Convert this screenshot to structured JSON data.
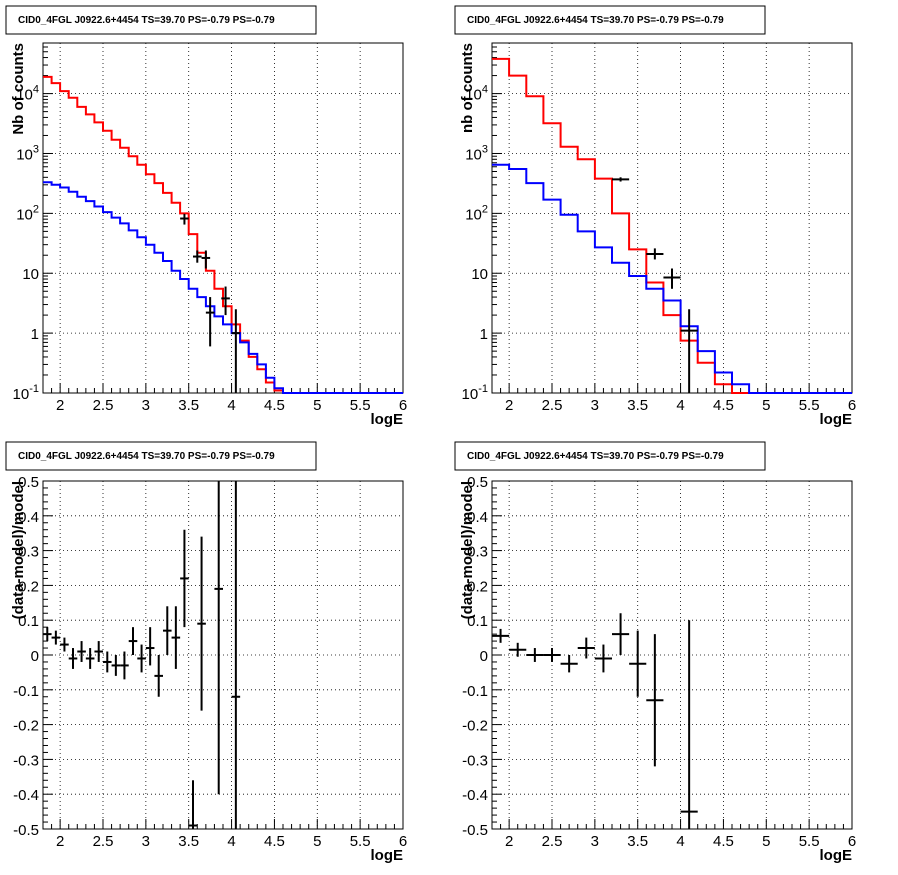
{
  "chart_data": [
    {
      "type": "line",
      "title": "CID0_4FGL J0922.6+4454 TS=39.70 PS=-0.79 PS=-0.79",
      "xlabel": "logE",
      "ylabel": "Nb of counts",
      "xlim": [
        1.8,
        6.0
      ],
      "ylim": [
        0.1,
        70000
      ],
      "ylog": true,
      "grid": true,
      "x_ticks": [
        "2",
        "2.5",
        "3",
        "3.5",
        "4",
        "4.5",
        "5",
        "5.5",
        "6"
      ],
      "y_ticks": [
        "10^-1",
        "1",
        "10",
        "10^2",
        "10^3",
        "10^4"
      ],
      "bin_edges": [
        1.8,
        1.9,
        2.0,
        2.1,
        2.2,
        2.3,
        2.4,
        2.5,
        2.6,
        2.7,
        2.8,
        2.9,
        3.0,
        3.1,
        3.2,
        3.3,
        3.4,
        3.5,
        3.6,
        3.7,
        3.8,
        3.9,
        4.0,
        4.1,
        4.2,
        4.3,
        4.4,
        4.5,
        4.6,
        6.0
      ],
      "series": [
        {
          "kind": "step",
          "color": "#ff0000",
          "values": [
            19000,
            15000,
            11000,
            8500,
            6000,
            4500,
            3300,
            2400,
            1700,
            1250,
            900,
            650,
            450,
            320,
            220,
            150,
            100,
            45,
            22,
            11,
            5.5,
            2.8,
            1.4,
            0.75,
            0.4,
            0.25,
            0.15,
            0.11,
            0.1
          ]
        },
        {
          "kind": "step",
          "color": "#0000ff",
          "values": [
            330,
            300,
            270,
            230,
            190,
            160,
            130,
            105,
            85,
            68,
            52,
            40,
            30,
            22,
            16,
            11,
            8,
            5.5,
            4,
            2.8,
            1.9,
            1.4,
            1.0,
            0.7,
            0.45,
            0.3,
            0.18,
            0.12,
            0.1
          ]
        },
        {
          "kind": "points",
          "color": "#000000",
          "points": [
            {
              "x": 3.45,
              "y": 82,
              "ylo": 65,
              "yhi": 98,
              "xerr": 0.05
            },
            {
              "x": 3.6,
              "y": 19,
              "ylo": 15,
              "yhi": 24,
              "xerr": 0.05
            },
            {
              "x": 3.7,
              "y": 18,
              "ylo": 12,
              "yhi": 24,
              "xerr": 0.05
            },
            {
              "x": 3.75,
              "y": 2.2,
              "ylo": 0.6,
              "yhi": 4.0,
              "xerr": 0.05
            },
            {
              "x": 3.93,
              "y": 3.8,
              "ylo": 2.0,
              "yhi": 6.0,
              "xerr": 0.05
            },
            {
              "x": 4.05,
              "y": 1.0,
              "ylo": 0.1,
              "yhi": 2.5,
              "xerr": 0.05
            }
          ]
        }
      ]
    },
    {
      "type": "line",
      "title": "CID0_4FGL J0922.6+4454 TS=39.70 PS=-0.79 PS=-0.79",
      "xlabel": "logE",
      "ylabel": "nb of counts",
      "xlim": [
        1.8,
        6.0
      ],
      "ylim": [
        0.1,
        70000
      ],
      "ylog": true,
      "grid": true,
      "x_ticks": [
        "2",
        "2.5",
        "3",
        "3.5",
        "4",
        "4.5",
        "5",
        "5.5",
        "6"
      ],
      "y_ticks": [
        "10^-1",
        "1",
        "10",
        "10^2",
        "10^3",
        "10^4"
      ],
      "bin_edges": [
        1.8,
        2.0,
        2.2,
        2.4,
        2.6,
        2.8,
        3.0,
        3.2,
        3.4,
        3.6,
        3.8,
        4.0,
        4.2,
        4.4,
        4.6,
        4.8,
        6.0
      ],
      "series": [
        {
          "kind": "step",
          "color": "#ff0000",
          "values": [
            38000,
            20000,
            9000,
            3200,
            1300,
            800,
            380,
            100,
            25,
            7,
            2,
            0.75,
            0.32,
            0.14,
            0.1,
            0.1
          ]
        },
        {
          "kind": "step",
          "color": "#0000ff",
          "values": [
            650,
            550,
            320,
            170,
            95,
            50,
            27,
            15,
            9,
            5.5,
            3.5,
            1.3,
            0.5,
            0.22,
            0.14,
            0.1
          ]
        },
        {
          "kind": "points",
          "color": "#000000",
          "points": [
            {
              "x": 3.3,
              "y": 370,
              "ylo": 340,
              "yhi": 400,
              "xerr": 0.1
            },
            {
              "x": 3.7,
              "y": 21,
              "ylo": 17,
              "yhi": 26,
              "xerr": 0.1
            },
            {
              "x": 3.9,
              "y": 8.5,
              "ylo": 5.5,
              "yhi": 12,
              "xerr": 0.1
            },
            {
              "x": 4.1,
              "y": 1.1,
              "ylo": 0.1,
              "yhi": 2.5,
              "xerr": 0.1
            }
          ]
        }
      ]
    },
    {
      "type": "scatter",
      "title": "CID0_4FGL J0922.6+4454 TS=39.70 PS=-0.79 PS=-0.79",
      "xlabel": "logE",
      "ylabel": "(data-model)/model",
      "xlim": [
        1.8,
        6.0
      ],
      "ylim": [
        -0.5,
        0.5
      ],
      "ylog": false,
      "grid": true,
      "x_ticks": [
        "2",
        "2.5",
        "3",
        "3.5",
        "4",
        "4.5",
        "5",
        "5.5",
        "6"
      ],
      "y_ticks": [
        "-0.5",
        "-0.4",
        "-0.3",
        "-0.2",
        "-0.1",
        "0",
        "0.1",
        "0.2",
        "0.3",
        "0.4",
        "0.5"
      ],
      "series": [
        {
          "kind": "points",
          "color": "#000000",
          "points": [
            {
              "x": 1.85,
              "y": 0.06,
              "ylo": 0.04,
              "yhi": 0.08,
              "xerr": 0.05
            },
            {
              "x": 1.95,
              "y": 0.05,
              "ylo": 0.03,
              "yhi": 0.07,
              "xerr": 0.05
            },
            {
              "x": 2.05,
              "y": 0.03,
              "ylo": 0.01,
              "yhi": 0.05,
              "xerr": 0.05
            },
            {
              "x": 2.15,
              "y": -0.01,
              "ylo": -0.04,
              "yhi": 0.02,
              "xerr": 0.05
            },
            {
              "x": 2.25,
              "y": 0.01,
              "ylo": -0.02,
              "yhi": 0.04,
              "xerr": 0.05
            },
            {
              "x": 2.35,
              "y": -0.01,
              "ylo": -0.04,
              "yhi": 0.02,
              "xerr": 0.05
            },
            {
              "x": 2.45,
              "y": 0.01,
              "ylo": -0.02,
              "yhi": 0.04,
              "xerr": 0.05
            },
            {
              "x": 2.55,
              "y": -0.02,
              "ylo": -0.05,
              "yhi": 0.01,
              "xerr": 0.05
            },
            {
              "x": 2.65,
              "y": -0.03,
              "ylo": -0.06,
              "yhi": 0.0,
              "xerr": 0.05
            },
            {
              "x": 2.75,
              "y": -0.03,
              "ylo": -0.07,
              "yhi": 0.01,
              "xerr": 0.05
            },
            {
              "x": 2.85,
              "y": 0.04,
              "ylo": 0.0,
              "yhi": 0.08,
              "xerr": 0.05
            },
            {
              "x": 2.95,
              "y": -0.01,
              "ylo": -0.05,
              "yhi": 0.03,
              "xerr": 0.05
            },
            {
              "x": 3.05,
              "y": 0.02,
              "ylo": -0.03,
              "yhi": 0.08,
              "xerr": 0.05
            },
            {
              "x": 3.15,
              "y": -0.06,
              "ylo": -0.12,
              "yhi": 0.0,
              "xerr": 0.05
            },
            {
              "x": 3.25,
              "y": 0.07,
              "ylo": 0.0,
              "yhi": 0.14,
              "xerr": 0.05
            },
            {
              "x": 3.35,
              "y": 0.05,
              "ylo": -0.04,
              "yhi": 0.14,
              "xerr": 0.05
            },
            {
              "x": 3.45,
              "y": 0.22,
              "ylo": 0.08,
              "yhi": 0.36,
              "xerr": 0.05
            },
            {
              "x": 3.55,
              "y": -0.49,
              "ylo": -0.5,
              "yhi": -0.36,
              "xerr": 0.05
            },
            {
              "x": 3.65,
              "y": 0.09,
              "ylo": -0.16,
              "yhi": 0.34,
              "xerr": 0.05
            },
            {
              "x": 3.85,
              "y": 0.19,
              "ylo": -0.4,
              "yhi": 0.5,
              "xerr": 0.05
            },
            {
              "x": 4.05,
              "y": -0.12,
              "ylo": -0.5,
              "yhi": 0.5,
              "xerr": 0.05
            }
          ]
        }
      ]
    },
    {
      "type": "scatter",
      "title": "CID0_4FGL J0922.6+4454 TS=39.70 PS=-0.79 PS=-0.79",
      "xlabel": "logE",
      "ylabel": "(data-model)/model",
      "xlim": [
        1.8,
        6.0
      ],
      "ylim": [
        -0.5,
        0.5
      ],
      "ylog": false,
      "grid": true,
      "x_ticks": [
        "2",
        "2.5",
        "3",
        "3.5",
        "4",
        "4.5",
        "5",
        "5.5",
        "6"
      ],
      "y_ticks": [
        "-0.5",
        "-0.4",
        "-0.3",
        "-0.2",
        "-0.1",
        "0",
        "0.1",
        "0.2",
        "0.3",
        "0.4",
        "0.5"
      ],
      "series": [
        {
          "kind": "points",
          "color": "#000000",
          "points": [
            {
              "x": 1.9,
              "y": 0.055,
              "ylo": 0.035,
              "yhi": 0.075,
              "xerr": 0.1
            },
            {
              "x": 2.1,
              "y": 0.015,
              "ylo": -0.005,
              "yhi": 0.035,
              "xerr": 0.1
            },
            {
              "x": 2.3,
              "y": 0.0,
              "ylo": -0.02,
              "yhi": 0.02,
              "xerr": 0.1
            },
            {
              "x": 2.5,
              "y": 0.0,
              "ylo": -0.02,
              "yhi": 0.02,
              "xerr": 0.1
            },
            {
              "x": 2.7,
              "y": -0.025,
              "ylo": -0.05,
              "yhi": 0.0,
              "xerr": 0.1
            },
            {
              "x": 2.9,
              "y": 0.02,
              "ylo": -0.01,
              "yhi": 0.05,
              "xerr": 0.1
            },
            {
              "x": 3.1,
              "y": -0.01,
              "ylo": -0.05,
              "yhi": 0.03,
              "xerr": 0.1
            },
            {
              "x": 3.3,
              "y": 0.06,
              "ylo": 0.0,
              "yhi": 0.12,
              "xerr": 0.1
            },
            {
              "x": 3.5,
              "y": -0.025,
              "ylo": -0.12,
              "yhi": 0.07,
              "xerr": 0.1
            },
            {
              "x": 3.7,
              "y": -0.13,
              "ylo": -0.32,
              "yhi": 0.06,
              "xerr": 0.1
            },
            {
              "x": 4.1,
              "y": -0.45,
              "ylo": -0.5,
              "yhi": 0.1,
              "xerr": 0.1
            }
          ]
        }
      ]
    }
  ]
}
